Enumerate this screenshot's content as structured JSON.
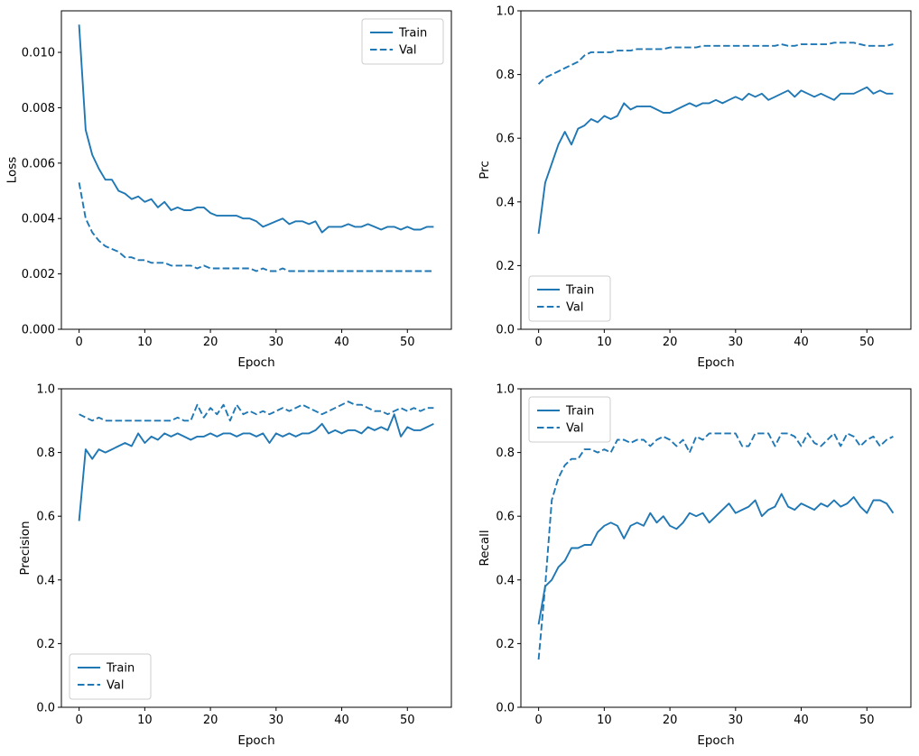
{
  "figure": {
    "background": "#ffffff",
    "accent": "#1f77b4",
    "train_label": "Train",
    "val_label": "Val"
  },
  "epochs": [
    0,
    1,
    2,
    3,
    4,
    5,
    6,
    7,
    8,
    9,
    10,
    11,
    12,
    13,
    14,
    15,
    16,
    17,
    18,
    19,
    20,
    21,
    22,
    23,
    24,
    25,
    26,
    27,
    28,
    29,
    30,
    31,
    32,
    33,
    34,
    35,
    36,
    37,
    38,
    39,
    40,
    41,
    42,
    43,
    44,
    45,
    46,
    47,
    48,
    49,
    50,
    51,
    52,
    53,
    54
  ],
  "chart_data": [
    {
      "type": "line",
      "name": "loss",
      "title": "",
      "xlabel": "Epoch",
      "ylabel": "Loss",
      "xlim": [
        -2.7,
        56.7
      ],
      "ylim": [
        0,
        0.0115
      ],
      "xticks": [
        0,
        10,
        20,
        30,
        40,
        50
      ],
      "yticks": [
        0,
        0.002,
        0.004,
        0.006,
        0.008,
        0.01
      ],
      "ytick_decimals": 3,
      "grid": false,
      "legend_position": "upper-right",
      "series": [
        {
          "name": "Train",
          "style": "solid",
          "color": "#1f77b4",
          "values": [
            0.011,
            0.0072,
            0.0063,
            0.0058,
            0.0054,
            0.0054,
            0.005,
            0.0049,
            0.0047,
            0.0048,
            0.0046,
            0.0047,
            0.0044,
            0.0046,
            0.0043,
            0.0044,
            0.0043,
            0.0043,
            0.0044,
            0.0044,
            0.0042,
            0.0041,
            0.0041,
            0.0041,
            0.0041,
            0.004,
            0.004,
            0.0039,
            0.0037,
            0.0038,
            0.0039,
            0.004,
            0.0038,
            0.0039,
            0.0039,
            0.0038,
            0.0039,
            0.0035,
            0.0037,
            0.0037,
            0.0037,
            0.0038,
            0.0037,
            0.0037,
            0.0038,
            0.0037,
            0.0036,
            0.0037,
            0.0037,
            0.0036,
            0.0037,
            0.0036,
            0.0036,
            0.0037,
            0.0037
          ]
        },
        {
          "name": "Val",
          "style": "dashed",
          "color": "#1f77b4",
          "values": [
            0.0053,
            0.004,
            0.0035,
            0.0032,
            0.003,
            0.0029,
            0.0028,
            0.0026,
            0.0026,
            0.0025,
            0.0025,
            0.0024,
            0.0024,
            0.0024,
            0.0023,
            0.0023,
            0.0023,
            0.0023,
            0.0022,
            0.0023,
            0.0022,
            0.0022,
            0.0022,
            0.0022,
            0.0022,
            0.0022,
            0.0022,
            0.0021,
            0.0022,
            0.0021,
            0.0021,
            0.0022,
            0.0021,
            0.0021,
            0.0021,
            0.0021,
            0.0021,
            0.0021,
            0.0021,
            0.0021,
            0.0021,
            0.0021,
            0.0021,
            0.0021,
            0.0021,
            0.0021,
            0.0021,
            0.0021,
            0.0021,
            0.0021,
            0.0021,
            0.0021,
            0.0021,
            0.0021,
            0.0021
          ]
        }
      ]
    },
    {
      "type": "line",
      "name": "prc",
      "title": "",
      "xlabel": "Epoch",
      "ylabel": "Prc",
      "xlim": [
        -2.7,
        56.7
      ],
      "ylim": [
        0,
        1.0
      ],
      "xticks": [
        0,
        10,
        20,
        30,
        40,
        50
      ],
      "yticks": [
        0,
        0.2,
        0.4,
        0.6,
        0.8,
        1.0
      ],
      "ytick_decimals": 1,
      "grid": false,
      "legend_position": "lower-left",
      "series": [
        {
          "name": "Train",
          "style": "solid",
          "color": "#1f77b4",
          "values": [
            0.3,
            0.46,
            0.52,
            0.58,
            0.62,
            0.58,
            0.63,
            0.64,
            0.66,
            0.65,
            0.67,
            0.66,
            0.67,
            0.71,
            0.69,
            0.7,
            0.7,
            0.7,
            0.69,
            0.68,
            0.68,
            0.69,
            0.7,
            0.71,
            0.7,
            0.71,
            0.71,
            0.72,
            0.71,
            0.72,
            0.73,
            0.72,
            0.74,
            0.73,
            0.74,
            0.72,
            0.73,
            0.74,
            0.75,
            0.73,
            0.75,
            0.74,
            0.73,
            0.74,
            0.73,
            0.72,
            0.74,
            0.74,
            0.74,
            0.75,
            0.76,
            0.74,
            0.75,
            0.74,
            0.74
          ]
        },
        {
          "name": "Val",
          "style": "dashed",
          "color": "#1f77b4",
          "values": [
            0.77,
            0.79,
            0.8,
            0.81,
            0.82,
            0.83,
            0.84,
            0.86,
            0.87,
            0.87,
            0.87,
            0.87,
            0.875,
            0.875,
            0.875,
            0.88,
            0.88,
            0.88,
            0.88,
            0.88,
            0.885,
            0.885,
            0.885,
            0.885,
            0.885,
            0.89,
            0.89,
            0.89,
            0.89,
            0.89,
            0.89,
            0.89,
            0.89,
            0.89,
            0.89,
            0.89,
            0.89,
            0.895,
            0.89,
            0.89,
            0.895,
            0.895,
            0.895,
            0.895,
            0.895,
            0.9,
            0.9,
            0.9,
            0.9,
            0.895,
            0.89,
            0.89,
            0.89,
            0.89,
            0.895
          ]
        }
      ]
    },
    {
      "type": "line",
      "name": "precision",
      "title": "",
      "xlabel": "Epoch",
      "ylabel": "Precision",
      "xlim": [
        -2.7,
        56.7
      ],
      "ylim": [
        0,
        1.0
      ],
      "xticks": [
        0,
        10,
        20,
        30,
        40,
        50
      ],
      "yticks": [
        0,
        0.2,
        0.4,
        0.6,
        0.8,
        1.0
      ],
      "ytick_decimals": 1,
      "grid": false,
      "legend_position": "lower-left",
      "series": [
        {
          "name": "Train",
          "style": "solid",
          "color": "#1f77b4",
          "values": [
            0.585,
            0.81,
            0.78,
            0.81,
            0.8,
            0.81,
            0.82,
            0.83,
            0.82,
            0.86,
            0.83,
            0.85,
            0.84,
            0.86,
            0.85,
            0.86,
            0.85,
            0.84,
            0.85,
            0.85,
            0.86,
            0.85,
            0.86,
            0.86,
            0.85,
            0.86,
            0.86,
            0.85,
            0.86,
            0.83,
            0.86,
            0.85,
            0.86,
            0.85,
            0.86,
            0.86,
            0.87,
            0.89,
            0.86,
            0.87,
            0.86,
            0.87,
            0.87,
            0.86,
            0.88,
            0.87,
            0.88,
            0.87,
            0.92,
            0.85,
            0.88,
            0.87,
            0.87,
            0.88,
            0.89
          ]
        },
        {
          "name": "Val",
          "style": "dashed",
          "color": "#1f77b4",
          "values": [
            0.92,
            0.91,
            0.9,
            0.91,
            0.9,
            0.9,
            0.9,
            0.9,
            0.9,
            0.9,
            0.9,
            0.9,
            0.9,
            0.9,
            0.9,
            0.91,
            0.9,
            0.9,
            0.95,
            0.91,
            0.94,
            0.92,
            0.95,
            0.9,
            0.95,
            0.92,
            0.93,
            0.92,
            0.93,
            0.92,
            0.93,
            0.94,
            0.93,
            0.94,
            0.95,
            0.94,
            0.93,
            0.92,
            0.93,
            0.94,
            0.95,
            0.96,
            0.95,
            0.95,
            0.94,
            0.93,
            0.93,
            0.92,
            0.93,
            0.94,
            0.93,
            0.94,
            0.93,
            0.94,
            0.94
          ]
        }
      ]
    },
    {
      "type": "line",
      "name": "recall",
      "title": "",
      "xlabel": "Epoch",
      "ylabel": "Recall",
      "xlim": [
        -2.7,
        56.7
      ],
      "ylim": [
        0,
        1.0
      ],
      "xticks": [
        0,
        10,
        20,
        30,
        40,
        50
      ],
      "yticks": [
        0,
        0.2,
        0.4,
        0.6,
        0.8,
        1.0
      ],
      "ytick_decimals": 1,
      "grid": false,
      "legend_position": "upper-left",
      "series": [
        {
          "name": "Train",
          "style": "solid",
          "color": "#1f77b4",
          "values": [
            0.26,
            0.38,
            0.4,
            0.44,
            0.46,
            0.5,
            0.5,
            0.51,
            0.51,
            0.55,
            0.57,
            0.58,
            0.57,
            0.53,
            0.57,
            0.58,
            0.57,
            0.61,
            0.58,
            0.6,
            0.57,
            0.56,
            0.58,
            0.61,
            0.6,
            0.61,
            0.58,
            0.6,
            0.62,
            0.64,
            0.61,
            0.62,
            0.63,
            0.65,
            0.6,
            0.62,
            0.63,
            0.67,
            0.63,
            0.62,
            0.64,
            0.63,
            0.62,
            0.64,
            0.63,
            0.65,
            0.63,
            0.64,
            0.66,
            0.63,
            0.61,
            0.65,
            0.65,
            0.64,
            0.61
          ]
        },
        {
          "name": "Val",
          "style": "dashed",
          "color": "#1f77b4",
          "values": [
            0.15,
            0.38,
            0.65,
            0.72,
            0.76,
            0.78,
            0.78,
            0.81,
            0.81,
            0.8,
            0.81,
            0.8,
            0.84,
            0.84,
            0.83,
            0.84,
            0.84,
            0.82,
            0.84,
            0.85,
            0.84,
            0.82,
            0.84,
            0.8,
            0.85,
            0.84,
            0.86,
            0.86,
            0.86,
            0.86,
            0.86,
            0.82,
            0.82,
            0.86,
            0.86,
            0.86,
            0.82,
            0.86,
            0.86,
            0.85,
            0.82,
            0.86,
            0.83,
            0.82,
            0.84,
            0.86,
            0.82,
            0.86,
            0.85,
            0.82,
            0.84,
            0.85,
            0.82,
            0.84,
            0.85
          ]
        }
      ]
    }
  ]
}
